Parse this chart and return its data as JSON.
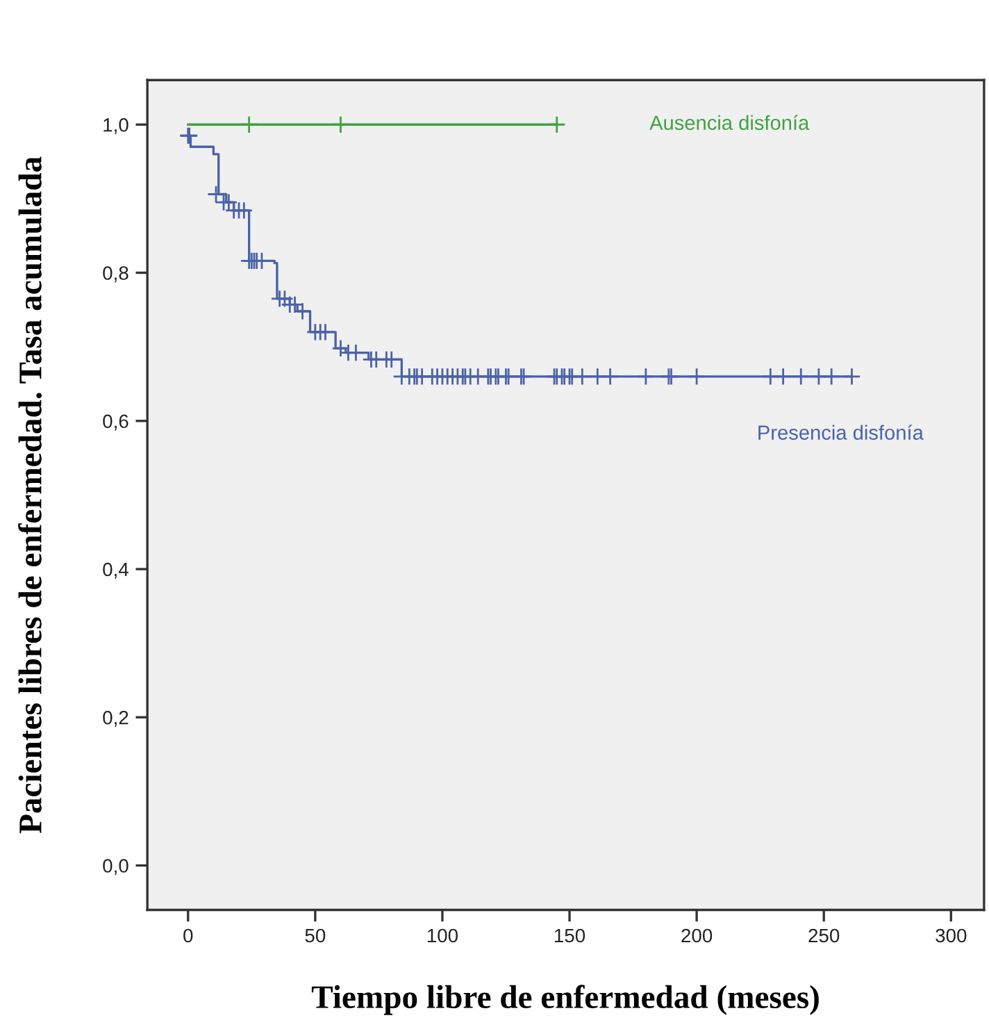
{
  "chart_data": {
    "type": "step",
    "xlabel": "Tiempo libre de enfermedad (meses)",
    "ylabel": "Pacientes libres de enfermedad. Tasa acumulada",
    "xlim": [
      -16,
      313
    ],
    "ylim": [
      -0.06,
      1.06
    ],
    "xticks": [
      0,
      50,
      100,
      150,
      200,
      250,
      300
    ],
    "yticks": [
      {
        "value": 0.0,
        "label": "0,0"
      },
      {
        "value": 0.2,
        "label": "0,2"
      },
      {
        "value": 0.4,
        "label": "0,4"
      },
      {
        "value": 0.6,
        "label": "0,6"
      },
      {
        "value": 0.8,
        "label": "0,8"
      },
      {
        "value": 1.0,
        "label": "1,0"
      }
    ],
    "grid": false,
    "legend": false,
    "series": [
      {
        "name": "Ausencia disfonía",
        "color": "#3fa33f",
        "marker": "none",
        "x": [
          0,
          145
        ],
        "values": [
          1.0,
          1.0
        ]
      },
      {
        "type": "scatter",
        "color": "#3fa33f",
        "marker": "cross",
        "x": [
          24,
          60,
          145
        ],
        "values": [
          1.0,
          1.0,
          1.0
        ]
      },
      {
        "name": "Presencia disfonía",
        "color": "#4a62a8",
        "marker": "none",
        "x": [
          0,
          1,
          10,
          12,
          15,
          18,
          24,
          34,
          35,
          40,
          43,
          48,
          58,
          62,
          71,
          84,
          261
        ],
        "values": [
          0.985,
          0.97,
          0.96,
          0.906,
          0.895,
          0.884,
          0.816,
          0.813,
          0.765,
          0.757,
          0.748,
          0.72,
          0.698,
          0.692,
          0.683,
          0.66,
          0.66
        ]
      },
      {
        "type": "scatter",
        "color": "#4a62a8",
        "marker": "cross",
        "x": [
          0,
          0.5,
          11,
          14,
          16,
          18,
          20,
          22,
          24,
          25,
          26,
          27,
          29,
          36,
          38,
          40,
          42,
          45,
          50,
          52,
          54,
          60,
          63,
          66,
          72,
          74,
          78,
          80,
          84,
          87,
          89,
          90,
          92,
          96,
          98,
          100,
          102,
          104,
          106,
          108,
          109,
          111,
          114,
          118,
          119,
          121,
          122,
          125,
          126,
          131,
          132,
          144,
          145,
          147,
          148,
          150,
          151,
          155,
          161,
          166,
          180,
          189,
          190,
          200,
          229,
          234,
          241,
          248,
          253,
          261
        ],
        "values": [
          0.985,
          0.985,
          0.906,
          0.895,
          0.895,
          0.884,
          0.884,
          0.884,
          0.816,
          0.816,
          0.816,
          0.816,
          0.816,
          0.765,
          0.765,
          0.757,
          0.757,
          0.748,
          0.72,
          0.72,
          0.72,
          0.698,
          0.692,
          0.692,
          0.683,
          0.683,
          0.683,
          0.683,
          0.66,
          0.66,
          0.66,
          0.66,
          0.66,
          0.66,
          0.66,
          0.66,
          0.66,
          0.66,
          0.66,
          0.66,
          0.66,
          0.66,
          0.66,
          0.66,
          0.66,
          0.66,
          0.66,
          0.66,
          0.66,
          0.66,
          0.66,
          0.66,
          0.66,
          0.66,
          0.66,
          0.66,
          0.66,
          0.66,
          0.66,
          0.66,
          0.66,
          0.66,
          0.66,
          0.66,
          0.66,
          0.66,
          0.66,
          0.66,
          0.66,
          0.66
        ]
      }
    ]
  }
}
